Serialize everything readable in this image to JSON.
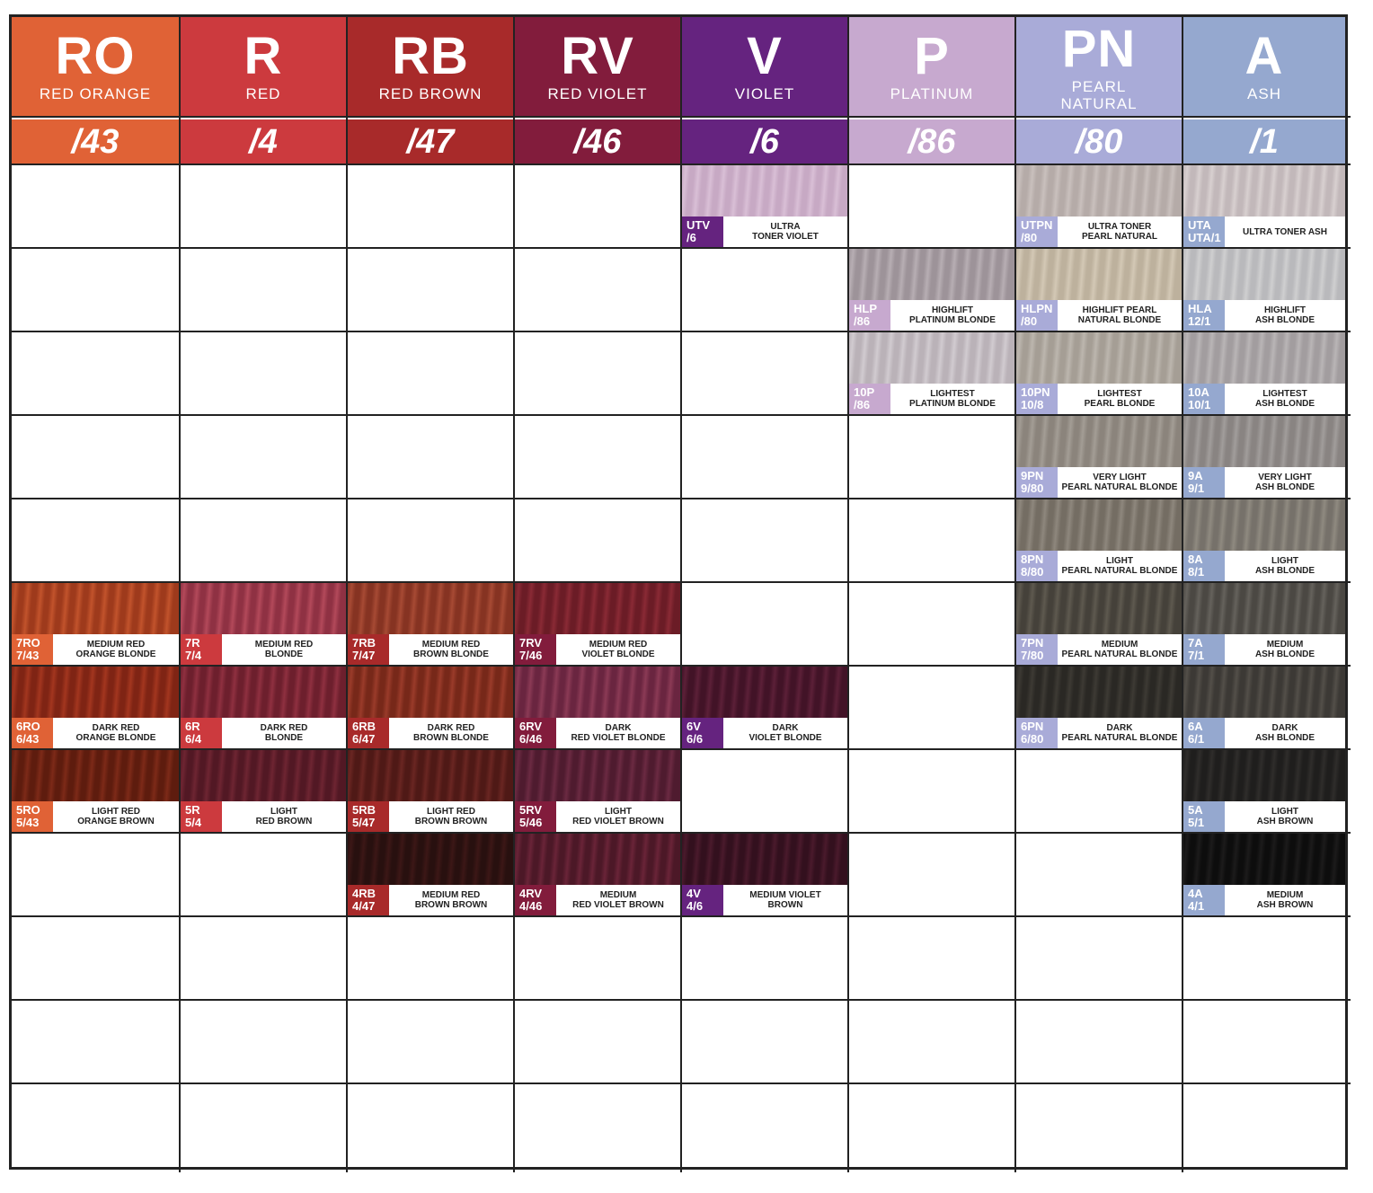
{
  "columns": [
    {
      "code": "RO",
      "name": "RED ORANGE",
      "tone": "/43",
      "color": "#e06236",
      "sub_color": "#e06236"
    },
    {
      "code": "R",
      "name": "RED",
      "tone": "/4",
      "color": "#cc3a3e",
      "sub_color": "#cc3a3e"
    },
    {
      "code": "RB",
      "name": "RED BROWN",
      "tone": "/47",
      "color": "#a82a2a",
      "sub_color": "#a82a2a"
    },
    {
      "code": "RV",
      "name": "RED VIOLET",
      "tone": "/46",
      "color": "#821c3c",
      "sub_color": "#821c3c"
    },
    {
      "code": "V",
      "name": "VIOLET",
      "tone": "/6",
      "color": "#65237f",
      "sub_color": "#65237f"
    },
    {
      "code": "P",
      "name": "PLATINUM",
      "tone": "/86",
      "color": "#c7a9cf",
      "sub_color": "#c7a9cf"
    },
    {
      "code": "PN",
      "name": "PEARL NATURAL",
      "name_lines": [
        "PEARL",
        "NATURAL"
      ],
      "tone": "/80",
      "color": "#a9abd8",
      "sub_color": "#a9abd8"
    },
    {
      "code": "A",
      "name": "ASH",
      "tone": "/1",
      "color": "#95a8cf",
      "sub_color": "#95a8cf"
    }
  ],
  "shades": [
    {
      "col": 4,
      "row": 0,
      "code1": "UTV",
      "code2": "/6",
      "name1": "ULTRA",
      "name2": "TONER VIOLET",
      "hair": [
        "#d9bfd6",
        "#c7a9c4"
      ]
    },
    {
      "col": 6,
      "row": 0,
      "code1": "UTPN",
      "code2": "/80",
      "name1": "ULTRA TONER",
      "name2": "PEARL NATURAL",
      "hair": [
        "#c9c0bd",
        "#b5aba8"
      ]
    },
    {
      "col": 7,
      "row": 0,
      "code1": "UTA",
      "code2": "UTA/1",
      "name1": "ULTRA TONER ASH",
      "name2": "",
      "hair": [
        "#d8d0d0",
        "#c2b8ba"
      ]
    },
    {
      "col": 5,
      "row": 1,
      "code1": "HLP",
      "code2": "/86",
      "name1": "HIGHLIFT",
      "name2": "PLATINUM BLONDE",
      "hair": [
        "#b7aeb3",
        "#9d9399"
      ]
    },
    {
      "col": 6,
      "row": 1,
      "code1": "HLPN",
      "code2": "/80",
      "name1": "HIGHLIFT PEARL",
      "name2": "NATURAL BLONDE",
      "hair": [
        "#d3c8b5",
        "#bdb19d"
      ]
    },
    {
      "col": 7,
      "row": 1,
      "code1": "HLA",
      "code2": "12/1",
      "name1": "HIGHLIFT",
      "name2": "ASH BLONDE",
      "hair": [
        "#cfcfd0",
        "#b9b9bc"
      ]
    },
    {
      "col": 5,
      "row": 2,
      "code1": "10P",
      "code2": "/86",
      "name1": "LIGHTEST",
      "name2": "PLATINUM BLONDE",
      "hair": [
        "#d1cbd0",
        "#bab2b8"
      ]
    },
    {
      "col": 6,
      "row": 2,
      "code1": "10PN",
      "code2": "10/8",
      "name1": "LIGHTEST",
      "name2": "PEARL BLONDE",
      "hair": [
        "#bcb6ae",
        "#a59e95"
      ]
    },
    {
      "col": 7,
      "row": 2,
      "code1": "10A",
      "code2": "10/1",
      "name1": "LIGHTEST",
      "name2": "ASH BLONDE",
      "hair": [
        "#b9b5b6",
        "#a29d9f"
      ]
    },
    {
      "col": 6,
      "row": 3,
      "code1": "9PN",
      "code2": "9/80",
      "name1": "VERY LIGHT",
      "name2": "PEARL NATURAL BLONDE",
      "hair": [
        "#a39d95",
        "#8b847c"
      ]
    },
    {
      "col": 7,
      "row": 3,
      "code1": "9A",
      "code2": "9/1",
      "name1": "VERY LIGHT",
      "name2": "ASH BLONDE",
      "hair": [
        "#a19d9b",
        "#898482"
      ]
    },
    {
      "col": 6,
      "row": 4,
      "code1": "8PN",
      "code2": "8/80",
      "name1": "LIGHT",
      "name2": "PEARL NATURAL BLONDE",
      "hair": [
        "#8e877d",
        "#746d63"
      ]
    },
    {
      "col": 7,
      "row": 4,
      "code1": "8A",
      "code2": "8/1",
      "name1": "LIGHT",
      "name2": "ASH BLONDE",
      "hair": [
        "#8f8a80",
        "#76716a"
      ]
    },
    {
      "col": 0,
      "row": 5,
      "code1": "7RO",
      "code2": "7/43",
      "name1": "MEDIUM RED",
      "name2": "ORANGE BLONDE",
      "hair": [
        "#c2532c",
        "#9e3a1c"
      ]
    },
    {
      "col": 1,
      "row": 5,
      "code1": "7R",
      "code2": "7/4",
      "name1": "MEDIUM RED",
      "name2": "BLONDE",
      "hair": [
        "#b3495a",
        "#8f3143"
      ]
    },
    {
      "col": 2,
      "row": 5,
      "code1": "7RB",
      "code2": "7/47",
      "name1": "MEDIUM RED",
      "name2": "BROWN BLONDE",
      "hair": [
        "#a74a34",
        "#863322"
      ]
    },
    {
      "col": 3,
      "row": 5,
      "code1": "7RV",
      "code2": "7/46",
      "name1": "MEDIUM RED",
      "name2": "VIOLET BLONDE",
      "hair": [
        "#8a2a35",
        "#6b1c26"
      ]
    },
    {
      "col": 6,
      "row": 5,
      "code1": "7PN",
      "code2": "7/80",
      "name1": "MEDIUM",
      "name2": "PEARL NATURAL BLONDE",
      "hair": [
        "#5e594f",
        "#45413a"
      ]
    },
    {
      "col": 7,
      "row": 5,
      "code1": "7A",
      "code2": "7/1",
      "name1": "MEDIUM",
      "name2": "ASH BLONDE",
      "hair": [
        "#65625c",
        "#4b4843"
      ]
    },
    {
      "col": 0,
      "row": 6,
      "code1": "6RO",
      "code2": "6/43",
      "name1": "DARK RED",
      "name2": "ORANGE BLONDE",
      "hair": [
        "#a3361f",
        "#7f2414"
      ]
    },
    {
      "col": 1,
      "row": 6,
      "code1": "6R",
      "code2": "6/4",
      "name1": "DARK RED",
      "name2": "BLONDE",
      "hair": [
        "#8f3040",
        "#6d1f2d"
      ]
    },
    {
      "col": 2,
      "row": 6,
      "code1": "6RB",
      "code2": "6/47",
      "name1": "DARK RED",
      "name2": "BROWN BLONDE",
      "hair": [
        "#9a3b2a",
        "#772819"
      ]
    },
    {
      "col": 3,
      "row": 6,
      "code1": "6RV",
      "code2": "6/46",
      "name1": "DARK",
      "name2": "RED VIOLET BLONDE",
      "hair": [
        "#8b3a55",
        "#6a2540"
      ]
    },
    {
      "col": 4,
      "row": 6,
      "code1": "6V",
      "code2": "6/6",
      "name1": "DARK",
      "name2": "VIOLET BLONDE",
      "hair": [
        "#5c2038",
        "#421327"
      ]
    },
    {
      "col": 6,
      "row": 6,
      "code1": "6PN",
      "code2": "6/80",
      "name1": "DARK",
      "name2": "PEARL NATURAL BLONDE",
      "hair": [
        "#3d3a34",
        "#2a2824"
      ]
    },
    {
      "col": 7,
      "row": 6,
      "code1": "6A",
      "code2": "6/1",
      "name1": "DARK",
      "name2": "ASH BLONDE",
      "hair": [
        "#534f49",
        "#3c3935"
      ]
    },
    {
      "col": 0,
      "row": 7,
      "code1": "5RO",
      "code2": "5/43",
      "name1": "LIGHT RED",
      "name2": "ORANGE BROWN",
      "hair": [
        "#7d2a18",
        "#5e1c0e"
      ]
    },
    {
      "col": 1,
      "row": 7,
      "code1": "5R",
      "code2": "5/4",
      "name1": "LIGHT",
      "name2": "RED BROWN",
      "hair": [
        "#6e2532",
        "#521824"
      ]
    },
    {
      "col": 2,
      "row": 7,
      "code1": "5RB",
      "code2": "5/47",
      "name1": "LIGHT RED",
      "name2": "BROWN BROWN",
      "hair": [
        "#6a2622",
        "#4f1916"
      ]
    },
    {
      "col": 3,
      "row": 7,
      "code1": "5RV",
      "code2": "5/46",
      "name1": "LIGHT",
      "name2": "RED VIOLET BROWN",
      "hair": [
        "#6b2a42",
        "#4f1b2f"
      ]
    },
    {
      "col": 7,
      "row": 7,
      "code1": "5A",
      "code2": "5/1",
      "name1": "LIGHT",
      "name2": "ASH BROWN",
      "hair": [
        "#2f2d2b",
        "#1f1e1d"
      ]
    },
    {
      "col": 2,
      "row": 8,
      "code1": "4RB",
      "code2": "4/47",
      "name1": "MEDIUM RED",
      "name2": "BROWN BROWN",
      "hair": [
        "#3c1716",
        "#28100f"
      ]
    },
    {
      "col": 3,
      "row": 8,
      "code1": "4RV",
      "code2": "4/46",
      "name1": "MEDIUM",
      "name2": "RED VIOLET BROWN",
      "hair": [
        "#6a2438",
        "#4c1827"
      ]
    },
    {
      "col": 4,
      "row": 8,
      "code1": "4V",
      "code2": "4/6",
      "name1": "MEDIUM VIOLET",
      "name2": "BROWN",
      "hair": [
        "#4a1a2c",
        "#33101e"
      ]
    },
    {
      "col": 7,
      "row": 8,
      "code1": "4A",
      "code2": "4/1",
      "name1": "MEDIUM",
      "name2": "ASH BROWN",
      "hair": [
        "#1c1b1b",
        "#0d0d0d"
      ]
    }
  ]
}
